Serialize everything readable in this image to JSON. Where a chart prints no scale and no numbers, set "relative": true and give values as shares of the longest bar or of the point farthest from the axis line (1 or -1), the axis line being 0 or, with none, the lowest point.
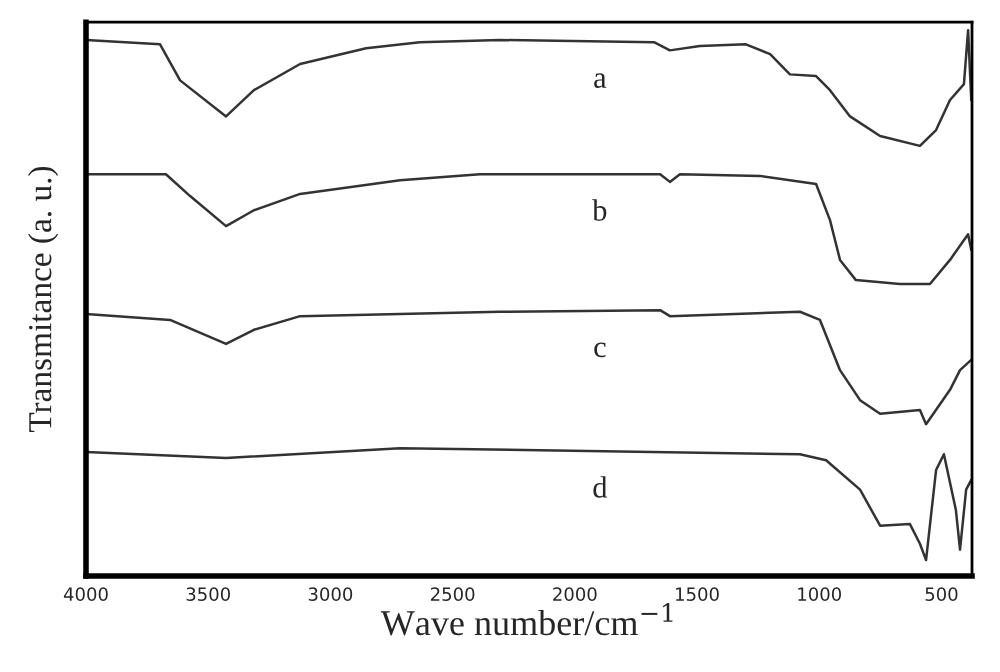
{
  "chart_data": {
    "type": "line",
    "relative": true,
    "xlabel": "Wave number/cm$^{−1}$",
    "ylabel": "Transmitance (a. u.)",
    "xlim": [
      4000,
      375
    ],
    "xticks": [
      4000,
      3500,
      3000,
      2500,
      2000,
      1500,
      1000,
      500
    ],
    "grid": false,
    "legend": false,
    "marker": "none",
    "line_style": "solid",
    "series": [
      {
        "name": "a",
        "color": "#333333",
        "x": [
          4000,
          3697,
          3615,
          3427,
          3313,
          3124,
          2854,
          2634,
          2306,
          1676,
          1611,
          1488,
          1300,
          1201,
          1120,
          1013,
          956,
          874,
          751,
          588,
          522,
          465,
          408,
          391,
          378
        ],
        "values": [
          0.982,
          0.974,
          0.908,
          0.842,
          0.89,
          0.938,
          0.967,
          0.978,
          0.982,
          0.978,
          0.963,
          0.971,
          0.974,
          0.956,
          0.919,
          0.916,
          0.89,
          0.842,
          0.806,
          0.788,
          0.817,
          0.872,
          0.901,
          1.0,
          0.872
        ]
      },
      {
        "name": "b",
        "color": "#333333",
        "x": [
          4000,
          3673,
          3574,
          3427,
          3313,
          3124,
          2715,
          2388,
          1651,
          1611,
          1570,
          1242,
          1013,
          956,
          915,
          850,
          670,
          547,
          465,
          391,
          378
        ],
        "values": [
          0.736,
          0.736,
          0.696,
          0.641,
          0.67,
          0.7,
          0.725,
          0.736,
          0.736,
          0.722,
          0.736,
          0.733,
          0.718,
          0.652,
          0.579,
          0.542,
          0.535,
          0.535,
          0.579,
          0.626,
          0.597
        ]
      },
      {
        "name": "c",
        "color": "#333333",
        "x": [
          4000,
          3656,
          3427,
          3313,
          3124,
          2306,
          1651,
          1611,
          1079,
          997,
          915,
          833,
          751,
          588,
          563,
          465,
          424,
          378
        ],
        "values": [
          0.48,
          0.469,
          0.425,
          0.451,
          0.476,
          0.484,
          0.487,
          0.476,
          0.484,
          0.469,
          0.377,
          0.322,
          0.297,
          0.304,
          0.278,
          0.341,
          0.377,
          0.396
        ]
      },
      {
        "name": "d",
        "color": "#333333",
        "x": [
          4000,
          3427,
          2715,
          1079,
          972,
          833,
          751,
          629,
          588,
          563,
          522,
          490,
          441,
          424,
          399,
          378
        ],
        "values": [
          0.227,
          0.216,
          0.234,
          0.223,
          0.212,
          0.158,
          0.092,
          0.095,
          0.059,
          0.029,
          0.194,
          0.223,
          0.121,
          0.048,
          0.158,
          0.176
        ]
      }
    ]
  }
}
